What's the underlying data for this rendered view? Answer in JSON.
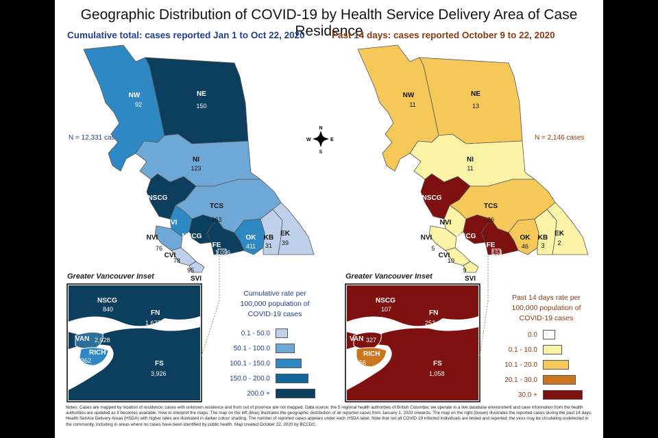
{
  "title": "Geographic Distribution of COVID-19 by Health Service Delivery Area of Case Residence",
  "left_map": {
    "subtitle": "Cumulative total: cases reported Jan 1 to Oct 22, 2020",
    "n_cases": "N = 12,331 cases",
    "regions": {
      "NW": {
        "label": "NW",
        "value": "92",
        "color": "#2e88c4"
      },
      "NE": {
        "label": "NE",
        "value": "150",
        "color": "#0c3e5e"
      },
      "NI": {
        "label": "NI",
        "value": "123",
        "color": "#6ea8d6"
      },
      "NSCG": {
        "label": "NSCG",
        "value": "",
        "color": "#0c3e5e"
      },
      "NVI": {
        "label": "NVI",
        "value": "",
        "color": "#2e88c4"
      },
      "TCS": {
        "label": "TCS",
        "value": "163",
        "color": "#6ea8d6"
      },
      "NVI2": {
        "label": "NVI",
        "value": "76",
        "color": "#6ea8d6"
      },
      "NSCG2": {
        "label": "NSCG",
        "value": "",
        "color": "#0c3e5e"
      },
      "FE": {
        "label": "FE",
        "value": "1,096",
        "color": "#0c3e5e"
      },
      "OK": {
        "label": "OK",
        "value": "411",
        "color": "#2e88c4"
      },
      "KB": {
        "label": "KB",
        "value": "31",
        "color": "#bfd0ea"
      },
      "EK": {
        "label": "EK",
        "value": "39",
        "color": "#bfd0ea"
      },
      "CVI": {
        "label": "CVI",
        "value": "78",
        "color": "#bfd0ea"
      },
      "SVI": {
        "label": "SVI",
        "value": "95",
        "color": "#bfd0ea"
      }
    },
    "inset_title": "Greater Vancouver Inset",
    "inset": {
      "NSCG": {
        "label": "NSCG",
        "value": "840"
      },
      "FN": {
        "label": "FN",
        "value": "1,677"
      },
      "VAN": {
        "label": "VAN",
        "value": "2,928"
      },
      "RICH": {
        "label": "RICH",
        "value": "362"
      },
      "FS": {
        "label": "FS",
        "value": "3,926"
      }
    },
    "legend_title": "Cumulative rate per 100,000 population of COVID-19 cases",
    "legend": [
      {
        "label": "0.1 - 50.0",
        "color": "#bfd0ea",
        "size": 1
      },
      {
        "label": "50.1 - 100.0",
        "color": "#6ea8d6",
        "size": 2
      },
      {
        "label": "100.1 - 150.0",
        "color": "#2e88c4",
        "size": 3
      },
      {
        "label": "150.0 - 200.0",
        "color": "#11679a",
        "size": 4
      },
      {
        "label": "200.0 +",
        "color": "#0c3e5e",
        "size": 5
      }
    ]
  },
  "right_map": {
    "subtitle": "Past 14 days: cases reported October 9 to 22, 2020",
    "n_cases": "N = 2,146 cases",
    "regions": {
      "NW": {
        "label": "NW",
        "value": "11",
        "color": "#f6c85a"
      },
      "NE": {
        "label": "NE",
        "value": "13",
        "color": "#f6c85a"
      },
      "NI": {
        "label": "NI",
        "value": "11",
        "color": "#fbf4a6"
      },
      "NSCG": {
        "label": "NSCG",
        "value": "",
        "color": "#7e1010"
      },
      "NVI": {
        "label": "NVI",
        "value": "",
        "color": "#fbf4a6"
      },
      "TCS": {
        "label": "TCS",
        "value": "26",
        "color": "#f6c85a"
      },
      "NVI2": {
        "label": "NVI",
        "value": "5",
        "color": "#fbf4a6"
      },
      "NSCG2": {
        "label": "NSCG",
        "value": "",
        "color": "#7e1010"
      },
      "FE": {
        "label": "FE",
        "value": "153",
        "color": "#7e1010"
      },
      "OK": {
        "label": "OK",
        "value": "46",
        "color": "#f6c85a"
      },
      "KB": {
        "label": "KB",
        "value": "3",
        "color": "#fbf4a6"
      },
      "EK": {
        "label": "EK",
        "value": "2",
        "color": "#fbf4a6"
      },
      "CVI": {
        "label": "CVI",
        "value": "10",
        "color": "#fbf4a6"
      },
      "SVI": {
        "label": "SVI",
        "value": "9",
        "color": "#fbf4a6"
      }
    },
    "inset_title": "Greater Vancouver Inset",
    "inset": {
      "NSCG": {
        "label": "NSCG",
        "value": "107"
      },
      "FN": {
        "label": "FN",
        "value": "252"
      },
      "VAN": {
        "label": "VAN",
        "value": "327"
      },
      "RICH": {
        "label": "RICH",
        "value": "56"
      },
      "FS": {
        "label": "FS",
        "value": "1,058"
      }
    },
    "legend_title": "Past 14 days rate per 100,000 population of COVID-19 cases",
    "legend": [
      {
        "label": "0.0",
        "color": "#ffffff",
        "size": 1
      },
      {
        "label": "0.1 - 10.0",
        "color": "#fbf4a6",
        "size": 2
      },
      {
        "label": "10.1 - 20.0",
        "color": "#f6c85a",
        "size": 3
      },
      {
        "label": "20.1 - 30.0",
        "color": "#c9761e",
        "size": 4
      },
      {
        "label": "30.0 +",
        "color": "#7e1010",
        "size": 5
      }
    ]
  },
  "compass": {
    "n": "N",
    "s": "S",
    "e": "E",
    "w": "W"
  },
  "notes": "Notes: Cases are mapped by location of residence; cases with unknown residence and from out of province are not mapped. Data source: the 5 regional health authorities of British Columbia; we operate in a live database environment and case information from the health authorities are updated as it becomes available. How to interpret the maps: The map on the left (blue) illustrates the geographic distribution of all reported cases from January 1, 2020 onwards. The map on the right (brown) illustrates the reported cases during the past 14 days. Health Service Delivery Areas (HSDA) with higher rates are illustrated in darker colour shading. The number of reported cases appears under each HSDA label. Note that not all COVID-19 infected individuals are tested and reported; the virus may be circulating undetected in the community, including in areas where no cases have been identified by public health. Map created October 22, 2020 by BCCDC."
}
